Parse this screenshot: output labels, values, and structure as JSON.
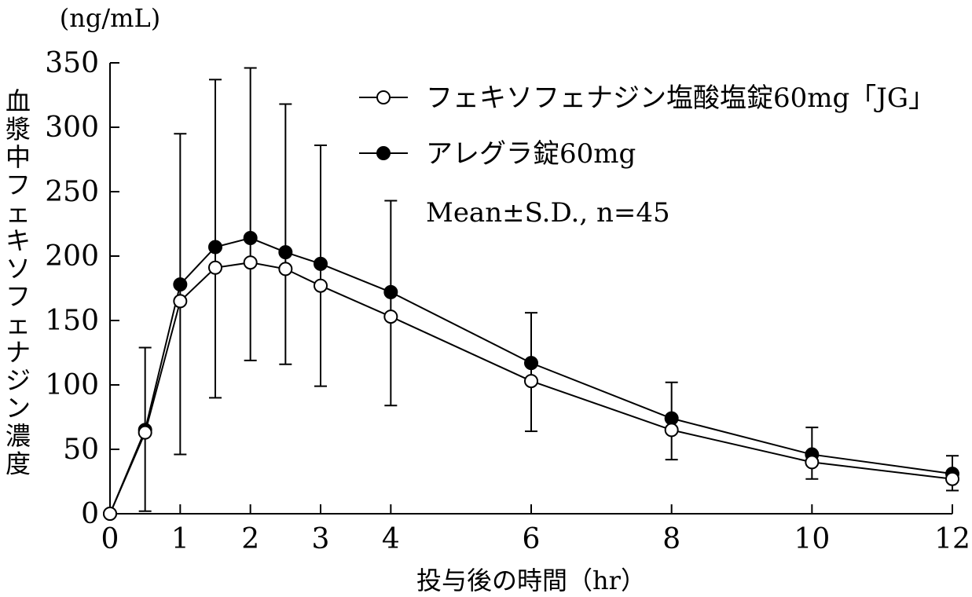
{
  "chart_data": {
    "type": "line",
    "title": "",
    "xlabel": "投与後の時間（hr）",
    "ylabel": "血漿中フェキソフェナジン濃度",
    "yunit": "(ng/mL)",
    "xlim": [
      0,
      12
    ],
    "ylim": [
      0,
      350
    ],
    "xticks": [
      0,
      1,
      2,
      3,
      4,
      6,
      8,
      10,
      12
    ],
    "yticks": [
      0,
      50,
      100,
      150,
      200,
      250,
      300,
      350
    ],
    "grid": false,
    "legend_position": "top-right",
    "note": "Mean±S.D., n=45",
    "x": [
      0,
      0.5,
      1,
      1.5,
      2,
      2.5,
      3,
      4,
      6,
      8,
      10,
      12
    ],
    "series": [
      {
        "name": "フェキソフェナジン塩酸塩錠60mg「JG」",
        "marker": "open-circle",
        "values": [
          0,
          63,
          165,
          191,
          195,
          190,
          177,
          153,
          103,
          65,
          40,
          27
        ]
      },
      {
        "name": "アレグラ錠60mg",
        "marker": "filled-circle",
        "values": [
          0,
          65,
          178,
          207,
          214,
          203,
          194,
          172,
          117,
          74,
          46,
          31
        ],
        "error_upper": [
          0,
          129,
          295,
          337,
          346,
          318,
          286,
          243,
          156,
          102,
          67,
          45
        ],
        "error_lower": [
          0,
          2,
          46,
          90,
          119,
          116,
          99,
          84,
          64,
          42,
          27,
          18
        ]
      }
    ]
  }
}
